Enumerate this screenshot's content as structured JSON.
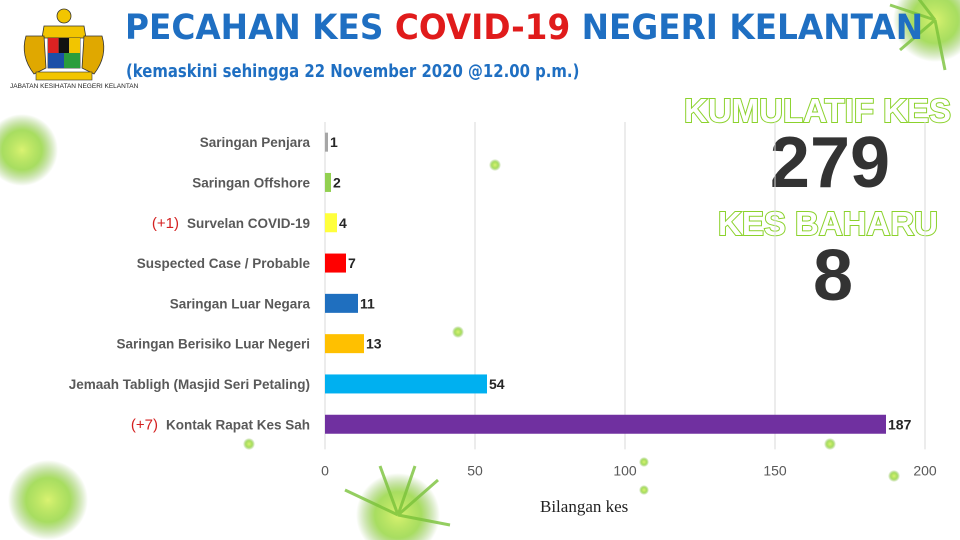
{
  "header": {
    "title_part1": "PECAHAN KES ",
    "title_highlight": "COVID-19",
    "title_part2": " NEGERI KELANTAN",
    "subtitle": "(kemaskini sehingga 22 November 2020 @12.00 p.m.)",
    "agency": "JABATAN KESIHATAN NEGERI KELANTAN"
  },
  "summary": {
    "cumulative_label": "KUMULATIF KES",
    "cumulative_value": "279",
    "new_label": "KES BAHARU",
    "new_value": "8"
  },
  "colors": {
    "title_blue": "#1f6fc2",
    "title_red": "#e01b1b",
    "virus_green": "#8bd22c",
    "delta_red": "#d42020"
  },
  "chart_data": {
    "type": "bar",
    "orientation": "horizontal",
    "categories": [
      "Saringan Penjara",
      "Saringan Offshore",
      "Survelan COVID-19",
      "Suspected Case / Probable",
      "Saringan Luar Negara",
      "Saringan Berisiko Luar Negeri",
      "Jemaah Tabligh (Masjid Seri Petaling)",
      "Kontak Rapat Kes Sah"
    ],
    "values": [
      1,
      2,
      4,
      7,
      11,
      13,
      54,
      187
    ],
    "deltas": [
      "",
      "",
      "(+1)",
      "",
      "",
      "",
      "",
      "(+7)"
    ],
    "bar_colors": [
      "#a6a6a6",
      "#92d050",
      "#ffff3c",
      "#ff0000",
      "#1f6fbf",
      "#ffc000",
      "#00b0f0",
      "#7030a0"
    ],
    "xlabel": "Bilangan kes",
    "ylabel": "",
    "xlim": [
      0,
      200
    ],
    "xticks": [
      0,
      50,
      100,
      150,
      200
    ],
    "grid": true,
    "legend": "none"
  }
}
